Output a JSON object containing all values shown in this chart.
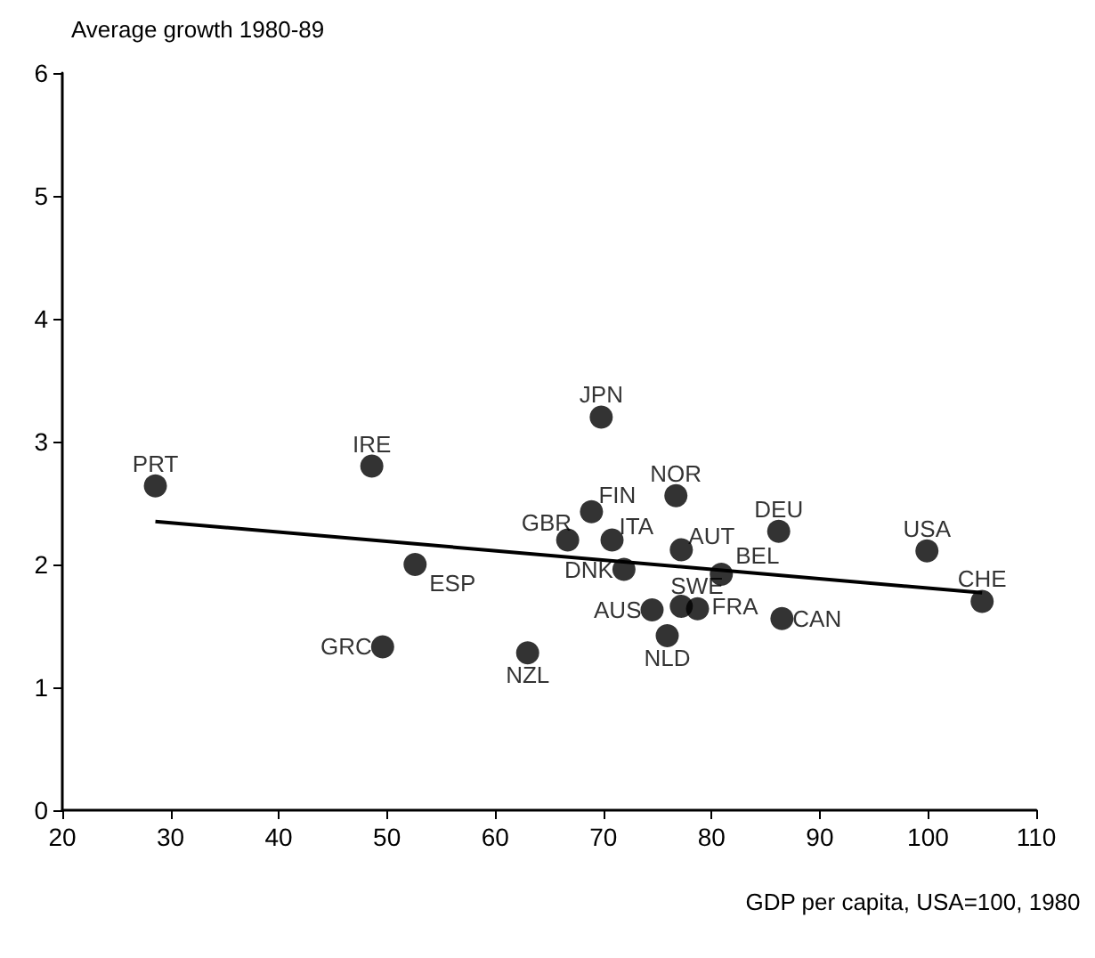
{
  "chart_data": {
    "type": "scatter",
    "ylabel": "Average growth 1980-89",
    "xlabel": "GDP per capita, USA=100, 1980",
    "xlim": [
      20,
      110
    ],
    "xticks": [
      20,
      30,
      40,
      50,
      60,
      70,
      80,
      90,
      100,
      110
    ],
    "ylim": [
      0,
      6
    ],
    "yticks": [
      0,
      1,
      2,
      3,
      4,
      5,
      6
    ],
    "grid": false,
    "marker": "circle",
    "series": [
      {
        "color": "#000000",
        "x": [
          28.6,
          48.6,
          52.6,
          49.6,
          63,
          69.8,
          76.7,
          68.9,
          66.7,
          70.8,
          71.9,
          77.2,
          86.2,
          99.9,
          105.0,
          80.9,
          77.2,
          78.7,
          74.5,
          75.9,
          86.5
        ],
        "values": [
          2.64,
          2.8,
          2.0,
          1.33,
          1.28,
          3.2,
          2.56,
          2.43,
          2.2,
          2.2,
          1.96,
          2.12,
          2.27,
          2.11,
          1.7,
          1.92,
          1.66,
          1.64,
          1.63,
          1.42,
          1.56
        ]
      },
      {
        "type": "line",
        "marker": "none",
        "color": "#000000",
        "x": [
          28.6,
          105.0
        ],
        "values": [
          2.35,
          1.77
        ]
      }
    ],
    "annotations": [
      {
        "text": "PRT",
        "x": 28.6,
        "y": 2.64
      },
      {
        "text": "IRE",
        "x": 48.6,
        "y": 2.8
      },
      {
        "text": "ESP",
        "x": 52.6,
        "y": 2.0
      },
      {
        "text": "GRC",
        "x": 49.6,
        "y": 1.33
      },
      {
        "text": "NZL",
        "x": 63,
        "y": 1.28
      },
      {
        "text": "JPN",
        "x": 69.8,
        "y": 3.2
      },
      {
        "text": "NOR",
        "x": 76.7,
        "y": 2.56
      },
      {
        "text": "FIN",
        "x": 68.9,
        "y": 2.43
      },
      {
        "text": "GBR",
        "x": 66.7,
        "y": 2.2
      },
      {
        "text": "ITA",
        "x": 70.8,
        "y": 2.2
      },
      {
        "text": "DNK",
        "x": 71.9,
        "y": 1.96
      },
      {
        "text": "AUT",
        "x": 77.2,
        "y": 2.12
      },
      {
        "text": "DEU",
        "x": 86.2,
        "y": 2.27
      },
      {
        "text": "USA",
        "x": 99.9,
        "y": 2.11
      },
      {
        "text": "CHE",
        "x": 105.0,
        "y": 1.7
      },
      {
        "text": "BEL",
        "x": 80.9,
        "y": 1.92
      },
      {
        "text": "SWE",
        "x": 77.2,
        "y": 1.66
      },
      {
        "text": "FRA",
        "x": 78.7,
        "y": 1.64
      },
      {
        "text": "AUS",
        "x": 74.5,
        "y": 1.63
      },
      {
        "text": "NLD",
        "x": 75.9,
        "y": 1.42
      },
      {
        "text": "CAN",
        "x": 86.5,
        "y": 1.56
      }
    ]
  }
}
